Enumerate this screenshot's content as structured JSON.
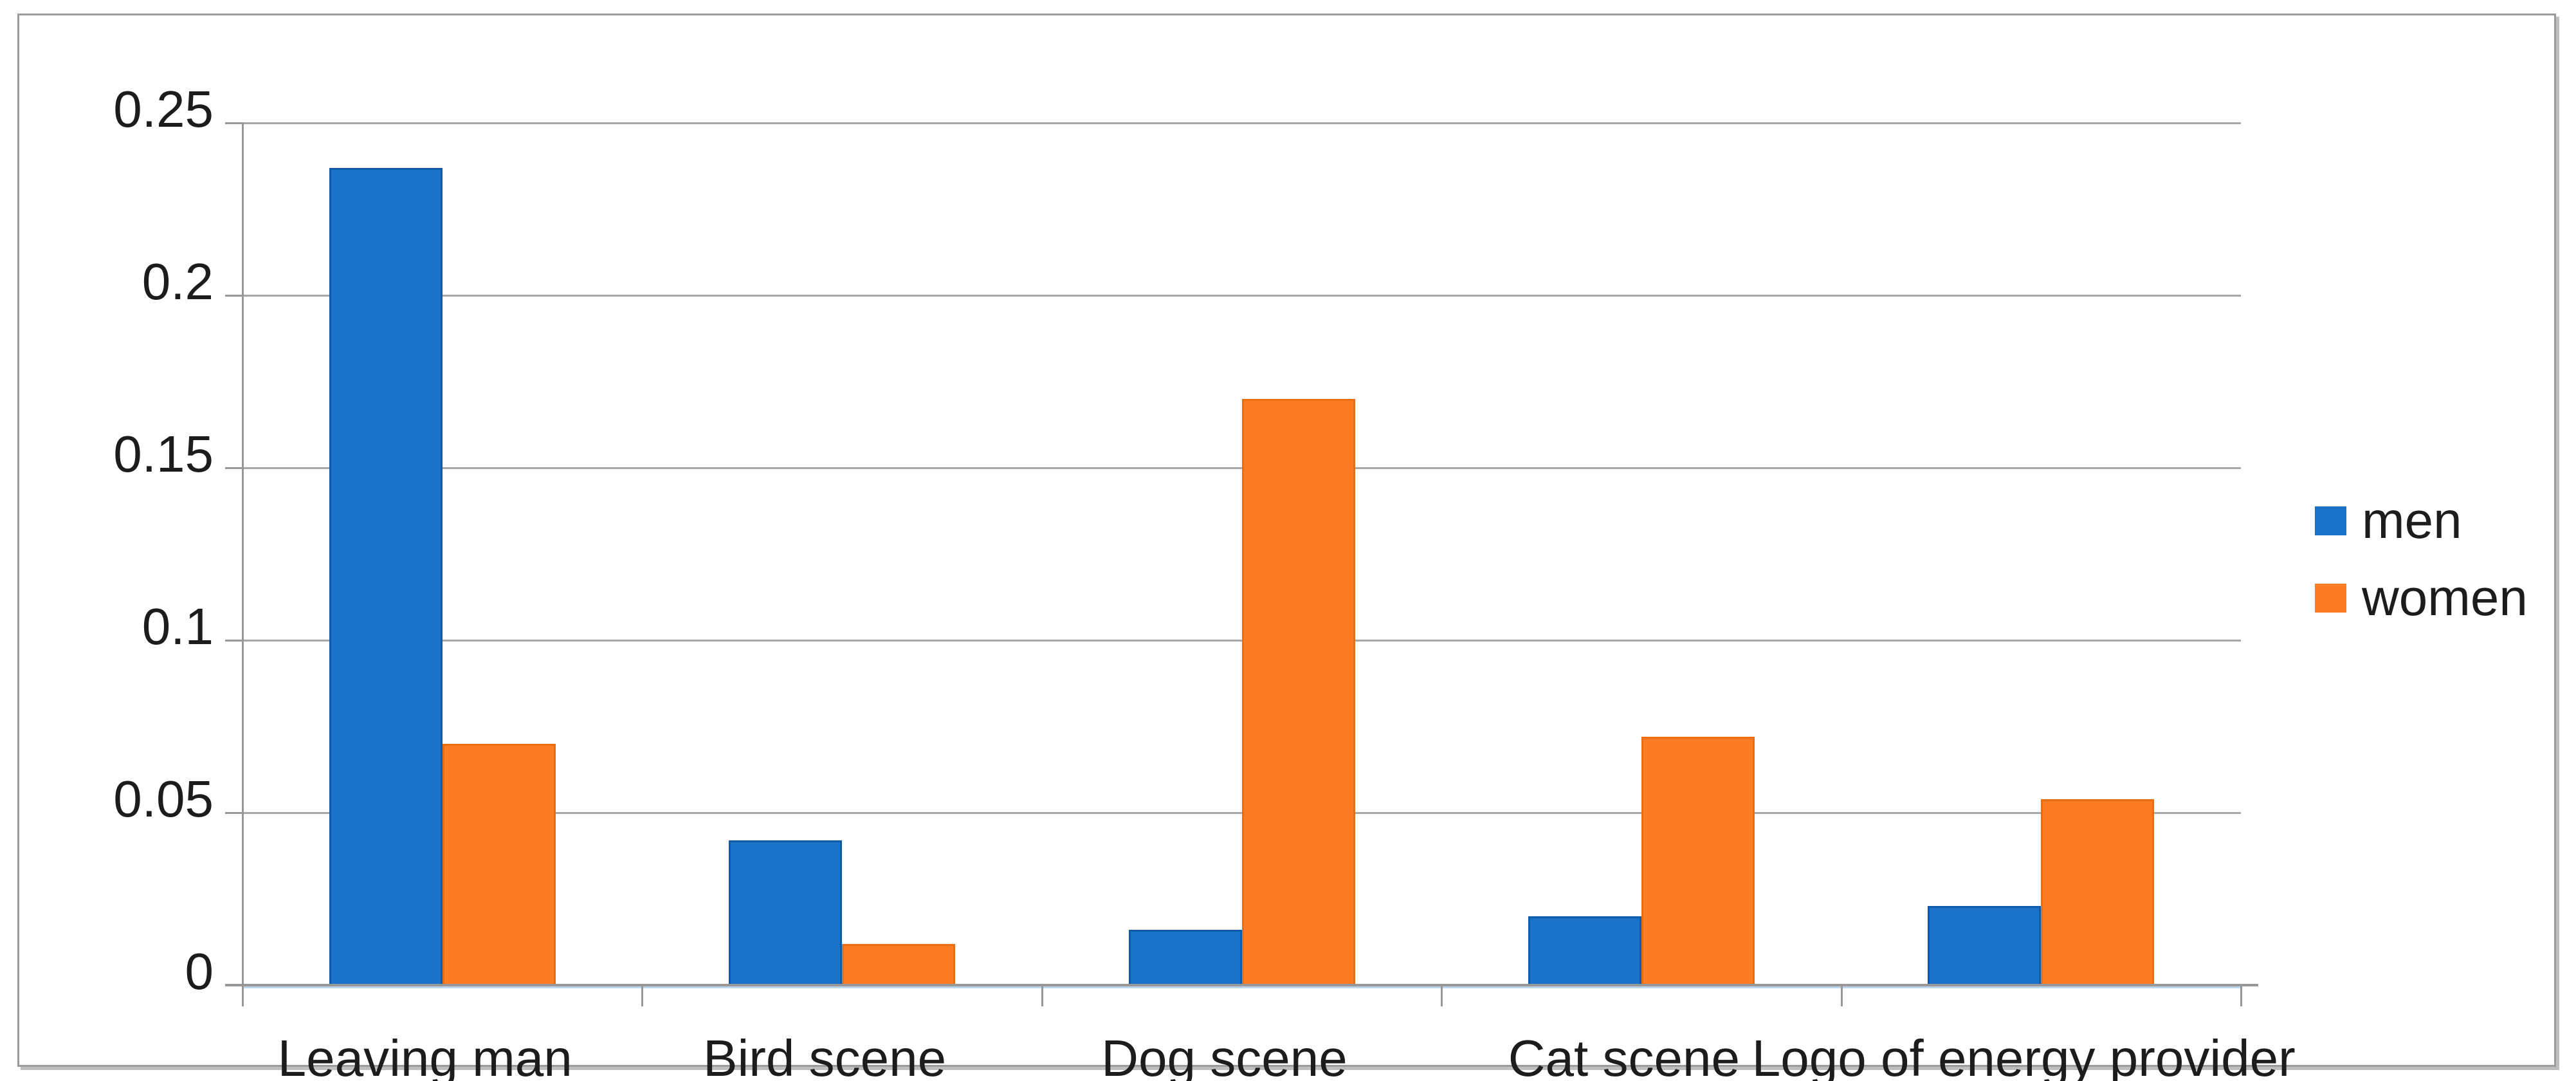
{
  "chart_data": {
    "type": "bar",
    "title": "",
    "categories": [
      "Leaving man",
      "Bird scene",
      "Dog scene",
      "Cat scene",
      "Logo of energy provider"
    ],
    "series": [
      {
        "name": "men",
        "color": "#1a73c8",
        "edge_color": "#0f5da9",
        "values": [
          0.237,
          0.042,
          0.016,
          0.02,
          0.023
        ]
      },
      {
        "name": "women",
        "color": "#fd7c26",
        "edge_color": "#ea6d12",
        "values": [
          0.07,
          0.012,
          0.17,
          0.072,
          0.054
        ]
      }
    ],
    "xlabel": "",
    "ylabel": "",
    "ylim": [
      0,
      0.25
    ],
    "y_ticks": [
      0.25,
      0.2,
      0.15,
      0.1,
      0.05,
      0
    ],
    "grid": true,
    "gridline_color": "#a7a7a7",
    "axis_color": "#989898",
    "text_color": "#1c1c1c",
    "frame_border_color": "#9b9b9b",
    "background_color": "#ffffff",
    "legend_position": "right",
    "legend_labels": [
      "men",
      "women"
    ]
  }
}
